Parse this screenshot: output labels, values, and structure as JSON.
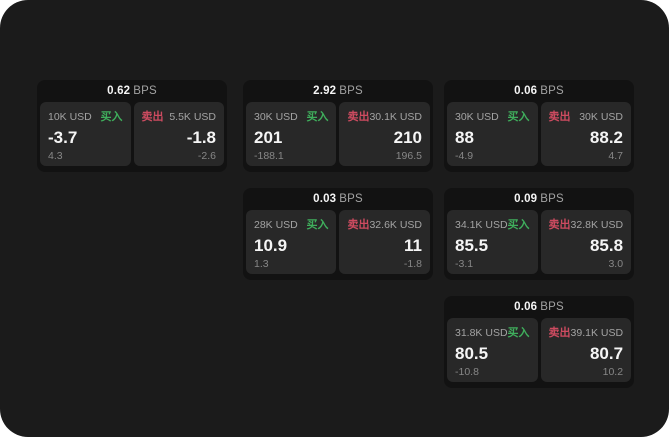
{
  "labels": {
    "buy": "买入",
    "sell": "卖出",
    "bps_suffix": "BPS"
  },
  "colors": {
    "canvas_bg": "#1b1b1b",
    "card_bg": "#121212",
    "panel_bg": "#282828",
    "buy_green": "#3fae5c",
    "sell_red": "#cd4b60",
    "text_primary": "#f5f5f5",
    "text_muted": "#a3a3a3",
    "text_dim": "#878787"
  },
  "cards": [
    {
      "bps": "0.62",
      "row": 0,
      "col": 0,
      "buy": {
        "amount": "10K USD",
        "value": "-3.7",
        "sub": "4.3"
      },
      "sell": {
        "amount": "5.5K USD",
        "value": "-1.8",
        "sub": "-2.6"
      }
    },
    {
      "bps": "2.92",
      "row": 0,
      "col": 1,
      "buy": {
        "amount": "30K USD",
        "value": "201",
        "sub": "-188.1"
      },
      "sell": {
        "amount": "30.1K USD",
        "value": "210",
        "sub": "196.5"
      }
    },
    {
      "bps": "0.06",
      "row": 0,
      "col": 2,
      "buy": {
        "amount": "30K USD",
        "value": "88",
        "sub": "-4.9"
      },
      "sell": {
        "amount": "30K USD",
        "value": "88.2",
        "sub": "4.7"
      }
    },
    {
      "bps": "0.03",
      "row": 1,
      "col": 1,
      "buy": {
        "amount": "28K USD",
        "value": "10.9",
        "sub": "1.3"
      },
      "sell": {
        "amount": "32.6K USD",
        "value": "11",
        "sub": "-1.8"
      }
    },
    {
      "bps": "0.09",
      "row": 1,
      "col": 2,
      "buy": {
        "amount": "34.1K USD",
        "value": "85.5",
        "sub": "-3.1"
      },
      "sell": {
        "amount": "32.8K USD",
        "value": "85.8",
        "sub": "3.0"
      }
    },
    {
      "bps": "0.06",
      "row": 2,
      "col": 2,
      "buy": {
        "amount": "31.8K USD",
        "value": "80.5",
        "sub": "-10.8"
      },
      "sell": {
        "amount": "39.1K USD",
        "value": "80.7",
        "sub": "10.2"
      }
    }
  ]
}
